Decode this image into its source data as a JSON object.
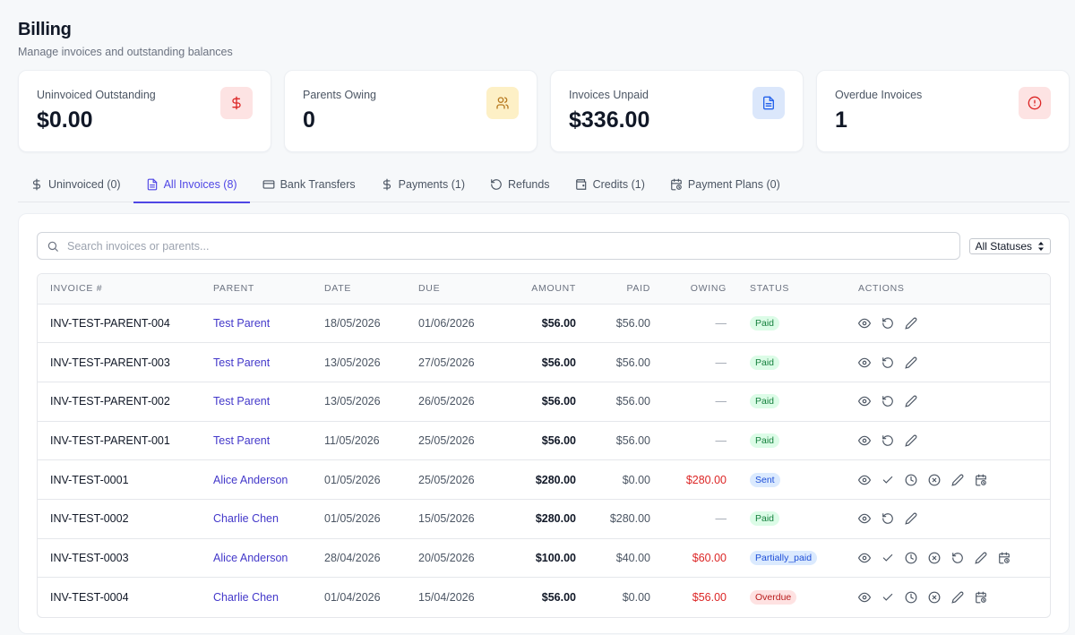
{
  "header": {
    "title": "Billing",
    "subtitle": "Manage invoices and outstanding balances"
  },
  "stats": [
    {
      "label": "Uninvoiced Outstanding",
      "value": "$0.00",
      "icon": "dollar-icon",
      "color": "#dc2626"
    },
    {
      "label": "Parents Owing",
      "value": "0",
      "icon": "users-icon",
      "color": "#b7791f"
    },
    {
      "label": "Invoices Unpaid",
      "value": "$336.00",
      "icon": "document-icon",
      "color": "#2563eb"
    },
    {
      "label": "Overdue Invoices",
      "value": "1",
      "icon": "alert-circle-icon",
      "color": "#dc2626"
    }
  ],
  "tabs": [
    {
      "label": "Uninvoiced (0)",
      "icon": "dollar-icon",
      "active": false
    },
    {
      "label": "All Invoices (8)",
      "icon": "document-icon",
      "active": true
    },
    {
      "label": "Bank Transfers",
      "icon": "credit-card-icon",
      "active": false
    },
    {
      "label": "Payments (1)",
      "icon": "dollar-icon",
      "active": false
    },
    {
      "label": "Refunds",
      "icon": "refund-icon",
      "active": false
    },
    {
      "label": "Credits (1)",
      "icon": "wallet-icon",
      "active": false
    },
    {
      "label": "Payment Plans (0)",
      "icon": "calendar-clock-icon",
      "active": false
    }
  ],
  "toolbar": {
    "search_placeholder": "Search invoices or parents...",
    "status_filter": "All Statuses"
  },
  "table": {
    "columns": [
      "Invoice #",
      "Parent",
      "Date",
      "Due",
      "Amount",
      "Paid",
      "Owing",
      "Status",
      "Actions"
    ],
    "rows": [
      {
        "invoice": "INV-TEST-PARENT-004",
        "parent": "Test Parent",
        "date": "18/05/2026",
        "due": "01/06/2026",
        "amount": "$56.00",
        "paid": "$56.00",
        "owing": "—",
        "status": "Paid",
        "actions": [
          "view",
          "refund",
          "edit"
        ]
      },
      {
        "invoice": "INV-TEST-PARENT-003",
        "parent": "Test Parent",
        "date": "13/05/2026",
        "due": "27/05/2026",
        "amount": "$56.00",
        "paid": "$56.00",
        "owing": "—",
        "status": "Paid",
        "actions": [
          "view",
          "refund",
          "edit"
        ]
      },
      {
        "invoice": "INV-TEST-PARENT-002",
        "parent": "Test Parent",
        "date": "13/05/2026",
        "due": "26/05/2026",
        "amount": "$56.00",
        "paid": "$56.00",
        "owing": "—",
        "status": "Paid",
        "actions": [
          "view",
          "refund",
          "edit"
        ]
      },
      {
        "invoice": "INV-TEST-PARENT-001",
        "parent": "Test Parent",
        "date": "11/05/2026",
        "due": "25/05/2026",
        "amount": "$56.00",
        "paid": "$56.00",
        "owing": "—",
        "status": "Paid",
        "actions": [
          "view",
          "refund",
          "edit"
        ]
      },
      {
        "invoice": "INV-TEST-0001",
        "parent": "Alice Anderson",
        "date": "01/05/2026",
        "due": "25/05/2026",
        "amount": "$280.00",
        "paid": "$0.00",
        "owing": "$280.00",
        "status": "Sent",
        "actions": [
          "view",
          "mark-paid",
          "clock",
          "void",
          "edit",
          "payment-plan"
        ]
      },
      {
        "invoice": "INV-TEST-0002",
        "parent": "Charlie Chen",
        "date": "01/05/2026",
        "due": "15/05/2026",
        "amount": "$280.00",
        "paid": "$280.00",
        "owing": "—",
        "status": "Paid",
        "actions": [
          "view",
          "refund",
          "edit"
        ]
      },
      {
        "invoice": "INV-TEST-0003",
        "parent": "Alice Anderson",
        "date": "28/04/2026",
        "due": "20/05/2026",
        "amount": "$100.00",
        "paid": "$40.00",
        "owing": "$60.00",
        "status": "Partially_paid",
        "actions": [
          "view",
          "mark-paid",
          "clock",
          "void",
          "refund",
          "edit",
          "payment-plan"
        ]
      },
      {
        "invoice": "INV-TEST-0004",
        "parent": "Charlie Chen",
        "date": "01/04/2026",
        "due": "15/04/2026",
        "amount": "$56.00",
        "paid": "$0.00",
        "owing": "$56.00",
        "status": "Overdue",
        "actions": [
          "view",
          "mark-paid",
          "clock",
          "void",
          "edit",
          "payment-plan"
        ]
      }
    ]
  },
  "colors": {
    "accent": "#4f46e5",
    "link": "#4338ca",
    "danger": "#dc2626",
    "paid_badge": "#dcfce7",
    "sent_badge": "#dbeafe",
    "overdue_badge": "#fee2e2"
  }
}
